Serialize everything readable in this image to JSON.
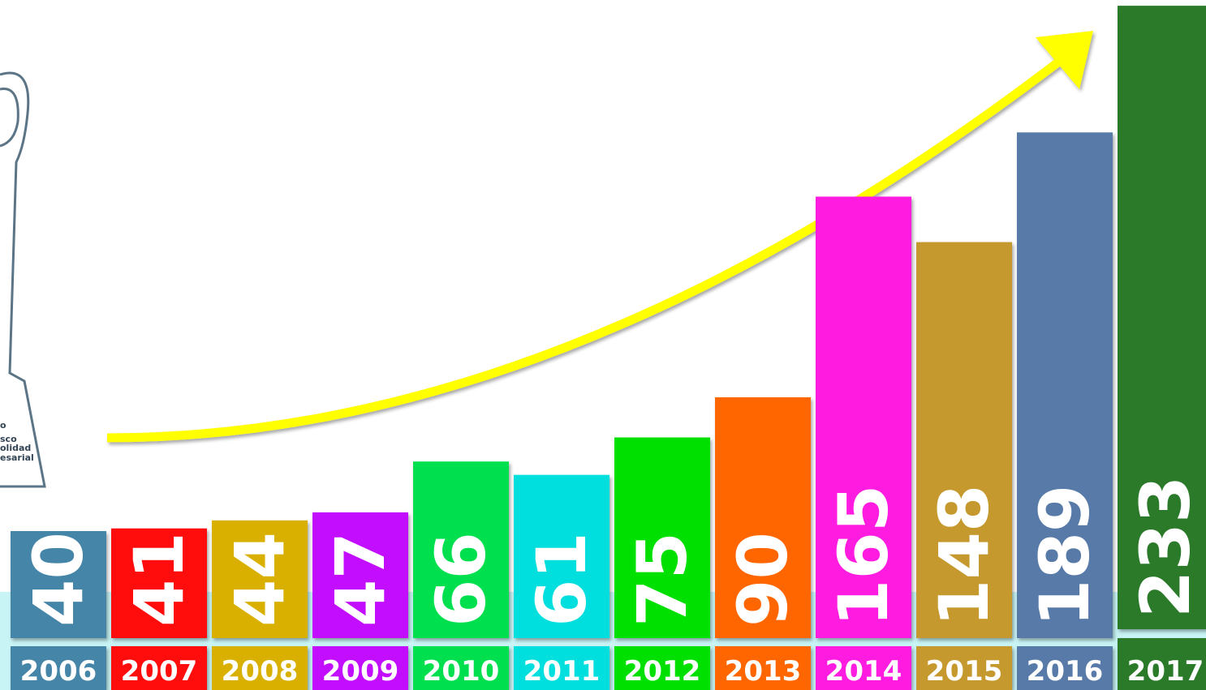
{
  "chart_data": {
    "type": "bar",
    "categories": [
      "2006",
      "2007",
      "2008",
      "2009",
      "2010",
      "2011",
      "2012",
      "2013",
      "2014",
      "2015",
      "2016",
      "2017"
    ],
    "values": [
      40,
      41,
      44,
      47,
      66,
      61,
      75,
      90,
      165,
      148,
      189,
      233
    ],
    "colors": [
      "#4485a8",
      "#ff0d0d",
      "#d9b000",
      "#c20dff",
      "#00e050",
      "#00dede",
      "#00e000",
      "#ff6600",
      "#ff1ee0",
      "#c6992f",
      "#587aa8",
      "#2a7a2a"
    ]
  },
  "trophy_text": [
    "o",
    "sco",
    "olidad",
    "esarial"
  ]
}
